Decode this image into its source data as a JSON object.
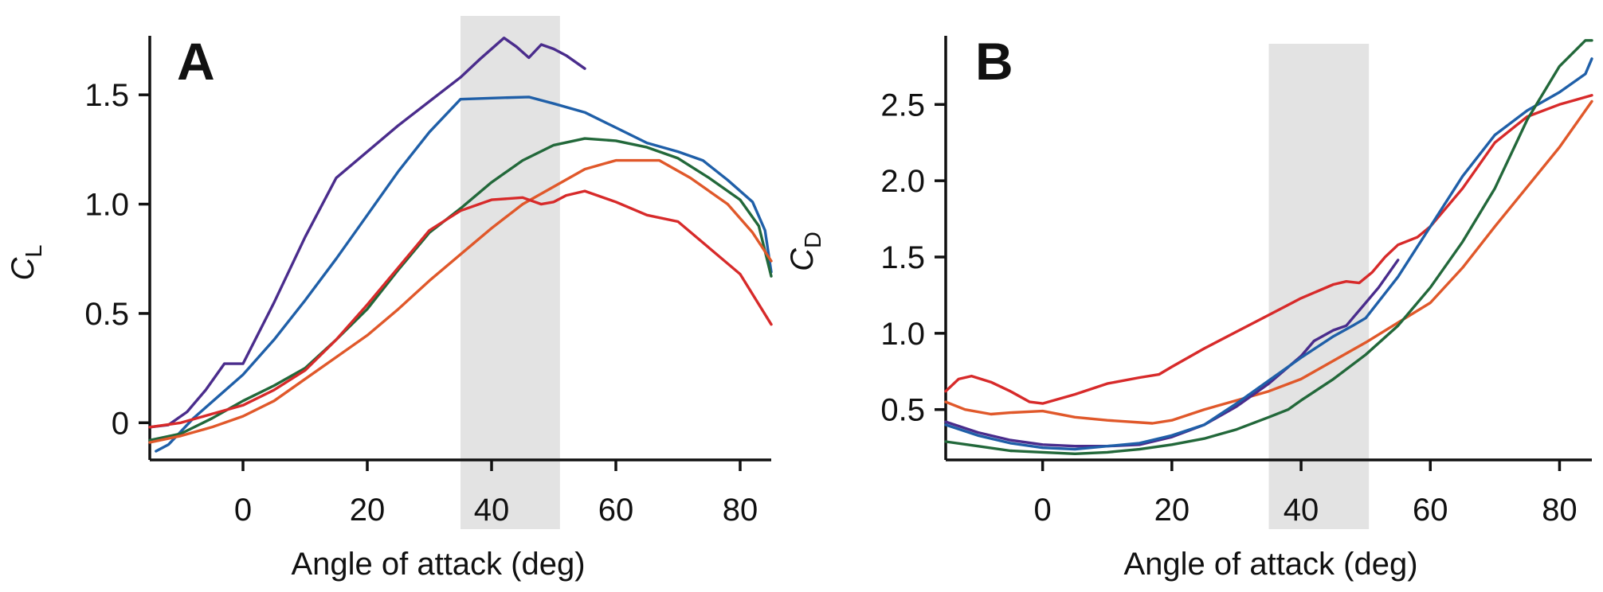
{
  "chart_data": [
    {
      "type": "line",
      "panel_label": "A",
      "xlabel": "Angle of attack (deg)",
      "ylabel_main": "C",
      "ylabel_sub": "L",
      "xlim": [
        -15,
        85
      ],
      "ylim": [
        -0.17,
        1.77
      ],
      "xticks": [
        0,
        20,
        40,
        60,
        80
      ],
      "yticks": [
        0,
        0.5,
        1.0,
        1.5
      ],
      "ytick_labels": [
        "0",
        "0.5",
        "1.0",
        "1.5"
      ],
      "shaded_region": [
        35,
        51
      ],
      "grid": false,
      "series": [
        {
          "color": "#4a2c8c",
          "x": [
            -15,
            -12,
            -9,
            -6,
            -3,
            0,
            5,
            10,
            15,
            20,
            25,
            30,
            35,
            38,
            42,
            44,
            46,
            48,
            50,
            52,
            55
          ],
          "y": [
            -0.02,
            -0.01,
            0.05,
            0.15,
            0.27,
            0.27,
            0.55,
            0.85,
            1.12,
            1.24,
            1.36,
            1.47,
            1.58,
            1.66,
            1.76,
            1.72,
            1.67,
            1.73,
            1.71,
            1.68,
            1.62
          ]
        },
        {
          "color": "#1f5fa8",
          "x": [
            -14,
            -12,
            -8,
            -4,
            0,
            5,
            10,
            15,
            20,
            25,
            30,
            35,
            40,
            46,
            50,
            55,
            60,
            65,
            70,
            74,
            78,
            82,
            84,
            85
          ],
          "y": [
            -0.13,
            -0.1,
            0.02,
            0.12,
            0.22,
            0.38,
            0.56,
            0.75,
            0.95,
            1.15,
            1.33,
            1.48,
            1.485,
            1.49,
            1.46,
            1.42,
            1.35,
            1.28,
            1.24,
            1.2,
            1.11,
            1.01,
            0.88,
            0.69
          ]
        },
        {
          "color": "#22683a",
          "x": [
            -15,
            -10,
            -5,
            0,
            5,
            10,
            15,
            20,
            25,
            30,
            35,
            40,
            45,
            50,
            55,
            60,
            65,
            70,
            75,
            80,
            83,
            85
          ],
          "y": [
            -0.08,
            -0.05,
            0.02,
            0.1,
            0.17,
            0.25,
            0.38,
            0.52,
            0.7,
            0.87,
            0.98,
            1.1,
            1.2,
            1.27,
            1.3,
            1.29,
            1.26,
            1.21,
            1.12,
            1.02,
            0.9,
            0.67
          ]
        },
        {
          "color": "#e0582a",
          "x": [
            -15,
            -10,
            -5,
            0,
            5,
            10,
            15,
            20,
            25,
            30,
            35,
            40,
            45,
            50,
            55,
            60,
            67,
            72,
            78,
            82,
            85
          ],
          "y": [
            -0.09,
            -0.06,
            -0.02,
            0.03,
            0.1,
            0.2,
            0.3,
            0.4,
            0.52,
            0.65,
            0.77,
            0.89,
            1.0,
            1.08,
            1.16,
            1.2,
            1.2,
            1.12,
            1.0,
            0.87,
            0.74
          ]
        },
        {
          "color": "#d72a2a",
          "x": [
            -15,
            -10,
            -5,
            0,
            5,
            10,
            15,
            20,
            25,
            30,
            35,
            40,
            45,
            48,
            50,
            52,
            55,
            60,
            65,
            70,
            75,
            80,
            85
          ],
          "y": [
            -0.02,
            0.0,
            0.04,
            0.08,
            0.15,
            0.24,
            0.38,
            0.54,
            0.71,
            0.88,
            0.97,
            1.02,
            1.03,
            1.0,
            1.01,
            1.04,
            1.06,
            1.01,
            0.95,
            0.92,
            0.8,
            0.68,
            0.45
          ]
        }
      ]
    },
    {
      "type": "line",
      "panel_label": "B",
      "xlabel": "Angle of attack (deg)",
      "ylabel_main": "C",
      "ylabel_sub": "D",
      "xlim": [
        -15,
        85
      ],
      "ylim": [
        0.17,
        2.95
      ],
      "xticks": [
        0,
        20,
        40,
        60,
        80
      ],
      "yticks": [
        0.5,
        1.0,
        1.5,
        2.0,
        2.5
      ],
      "ytick_labels": [
        "0.5",
        "1.0",
        "1.5",
        "2.0",
        "2.5"
      ],
      "shaded_region": [
        35,
        50.5
      ],
      "grid": false,
      "series": [
        {
          "color": "#d72a2a",
          "x": [
            -15,
            -13,
            -11,
            -8,
            -5,
            -2,
            0,
            5,
            10,
            15,
            18,
            20,
            25,
            30,
            35,
            40,
            45,
            47,
            49,
            51,
            53,
            55,
            58,
            60,
            65,
            70,
            75,
            80,
            85
          ],
          "y": [
            0.62,
            0.7,
            0.72,
            0.68,
            0.62,
            0.55,
            0.54,
            0.6,
            0.67,
            0.71,
            0.73,
            0.78,
            0.9,
            1.01,
            1.12,
            1.23,
            1.32,
            1.34,
            1.33,
            1.4,
            1.5,
            1.58,
            1.63,
            1.7,
            1.95,
            2.25,
            2.42,
            2.5,
            2.56
          ]
        },
        {
          "color": "#e0582a",
          "x": [
            -15,
            -12,
            -8,
            -5,
            0,
            5,
            10,
            17,
            20,
            25,
            30,
            35,
            40,
            45,
            50,
            55,
            60,
            65,
            70,
            75,
            80,
            85
          ],
          "y": [
            0.55,
            0.5,
            0.47,
            0.48,
            0.49,
            0.45,
            0.43,
            0.41,
            0.43,
            0.5,
            0.56,
            0.62,
            0.7,
            0.82,
            0.94,
            1.07,
            1.2,
            1.43,
            1.7,
            1.96,
            2.22,
            2.52
          ]
        },
        {
          "color": "#4a2c8c",
          "x": [
            -15,
            -10,
            -5,
            0,
            5,
            10,
            15,
            20,
            25,
            30,
            35,
            40,
            42,
            45,
            47,
            48,
            50,
            52,
            55
          ],
          "y": [
            0.42,
            0.35,
            0.3,
            0.27,
            0.26,
            0.26,
            0.27,
            0.32,
            0.4,
            0.52,
            0.67,
            0.85,
            0.95,
            1.02,
            1.05,
            1.1,
            1.2,
            1.3,
            1.48
          ]
        },
        {
          "color": "#1f5fa8",
          "x": [
            -15,
            -10,
            -5,
            0,
            5,
            10,
            15,
            20,
            25,
            30,
            35,
            40,
            45,
            48,
            50,
            55,
            60,
            65,
            70,
            75,
            80,
            84,
            85
          ],
          "y": [
            0.4,
            0.33,
            0.28,
            0.25,
            0.24,
            0.26,
            0.28,
            0.33,
            0.4,
            0.54,
            0.69,
            0.84,
            0.98,
            1.05,
            1.1,
            1.37,
            1.7,
            2.03,
            2.3,
            2.46,
            2.58,
            2.7,
            2.8
          ]
        },
        {
          "color": "#22683a",
          "x": [
            -15,
            -10,
            -5,
            0,
            5,
            10,
            15,
            20,
            25,
            30,
            35,
            38,
            40,
            45,
            50,
            55,
            60,
            65,
            70,
            75,
            80,
            84,
            85
          ],
          "y": [
            0.29,
            0.26,
            0.23,
            0.22,
            0.21,
            0.22,
            0.24,
            0.27,
            0.31,
            0.37,
            0.45,
            0.5,
            0.56,
            0.7,
            0.86,
            1.05,
            1.3,
            1.6,
            1.95,
            2.4,
            2.75,
            2.92,
            2.92
          ]
        }
      ]
    }
  ]
}
